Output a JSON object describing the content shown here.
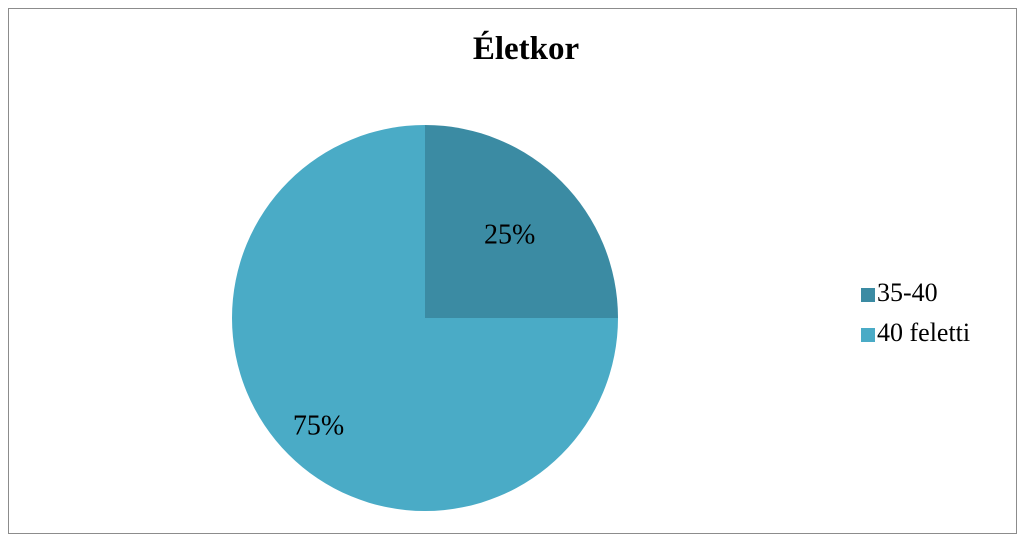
{
  "chart_data": {
    "type": "pie",
    "title": "Életkor",
    "categories": [
      "35-40",
      "40 feletti"
    ],
    "values": [
      25,
      75
    ],
    "data_labels": [
      "25%",
      "75%"
    ],
    "colors": [
      "#3b8ba3",
      "#4aabc6"
    ],
    "legend": {
      "position": "right",
      "entries": [
        "35-40",
        "40 feletti"
      ]
    }
  }
}
